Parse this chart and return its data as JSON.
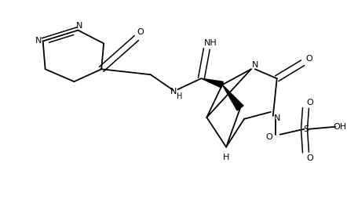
{
  "background_color": "#ffffff",
  "lw": 1.3,
  "lw_bold": 2.8,
  "lw_dbl": 1.1,
  "figsize": [
    4.42,
    2.54
  ],
  "dpi": 100,
  "xlim": [
    0,
    442
  ],
  "ylim": [
    0,
    254
  ]
}
